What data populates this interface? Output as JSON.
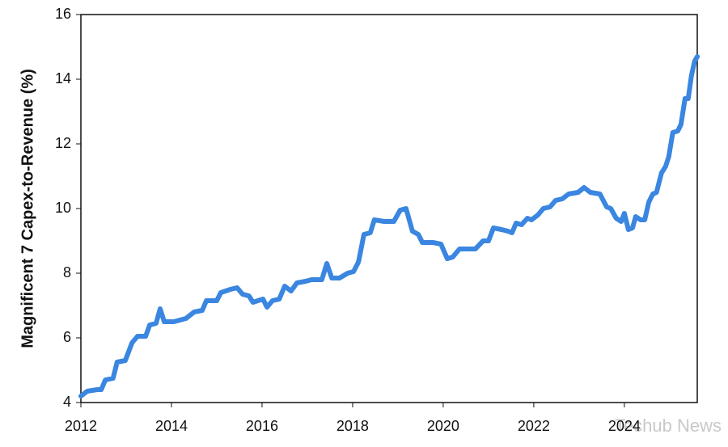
{
  "chart_data": {
    "type": "line",
    "y_label": "Magnificent 7 Capex-to-Revenue (%)",
    "watermark": "Techub News",
    "x": [
      2012.0,
      2012.14,
      2012.36,
      2012.45,
      2012.54,
      2012.71,
      2012.8,
      2012.98,
      2013.13,
      2013.25,
      2013.43,
      2013.52,
      2013.66,
      2013.75,
      2013.84,
      2014.05,
      2014.32,
      2014.5,
      2014.68,
      2014.77,
      2015.0,
      2015.09,
      2015.3,
      2015.45,
      2015.57,
      2015.71,
      2015.8,
      2016.02,
      2016.11,
      2016.23,
      2016.38,
      2016.5,
      2016.64,
      2016.77,
      2016.96,
      2017.09,
      2017.32,
      2017.43,
      2017.54,
      2017.71,
      2017.89,
      2018.02,
      2018.13,
      2018.25,
      2018.39,
      2018.48,
      2018.7,
      2018.91,
      2019.05,
      2019.18,
      2019.32,
      2019.45,
      2019.54,
      2019.77,
      2019.95,
      2020.09,
      2020.21,
      2020.36,
      2020.57,
      2020.71,
      2020.88,
      2021.0,
      2021.11,
      2021.29,
      2021.43,
      2021.52,
      2021.61,
      2021.73,
      2021.86,
      2021.95,
      2022.09,
      2022.21,
      2022.36,
      2022.48,
      2022.63,
      2022.77,
      2022.98,
      2023.11,
      2023.25,
      2023.46,
      2023.61,
      2023.7,
      2023.82,
      2023.93,
      2024.0,
      2024.09,
      2024.18,
      2024.25,
      2024.36,
      2024.45,
      2024.54,
      2024.63,
      2024.71,
      2024.82,
      2024.91,
      2024.98,
      2025.07,
      2025.18,
      2025.25,
      2025.34,
      2025.41,
      2025.48,
      2025.55,
      2025.61
    ],
    "series": [
      {
        "color": "#3a86e0",
        "values": [
          4.2,
          4.35,
          4.4,
          4.4,
          4.7,
          4.75,
          5.25,
          5.3,
          5.85,
          6.05,
          6.05,
          6.4,
          6.45,
          6.9,
          6.5,
          6.5,
          6.6,
          6.8,
          6.85,
          7.15,
          7.15,
          7.4,
          7.5,
          7.55,
          7.35,
          7.3,
          7.1,
          7.2,
          6.95,
          7.15,
          7.2,
          7.6,
          7.45,
          7.7,
          7.75,
          7.8,
          7.8,
          8.3,
          7.85,
          7.85,
          8.0,
          8.05,
          8.35,
          9.2,
          9.25,
          9.65,
          9.6,
          9.6,
          9.95,
          10.0,
          9.3,
          9.2,
          8.95,
          8.95,
          8.9,
          8.45,
          8.5,
          8.75,
          8.75,
          8.75,
          9.0,
          9.0,
          9.4,
          9.35,
          9.3,
          9.25,
          9.55,
          9.5,
          9.7,
          9.65,
          9.8,
          10.0,
          10.05,
          10.25,
          10.3,
          10.45,
          10.5,
          10.65,
          10.5,
          10.45,
          10.05,
          10.0,
          9.7,
          9.6,
          9.85,
          9.35,
          9.4,
          9.75,
          9.65,
          9.65,
          10.2,
          10.45,
          10.5,
          11.1,
          11.3,
          11.6,
          12.35,
          12.4,
          12.6,
          13.4,
          13.4,
          14.1,
          14.55,
          14.7
        ]
      }
    ],
    "xlim": [
      2012,
      2025.61
    ],
    "xticks": [
      2012,
      2014,
      2016,
      2018,
      2020,
      2022,
      2024
    ],
    "ylim": [
      4,
      16
    ],
    "yticks": [
      4,
      6,
      8,
      10,
      12,
      14,
      16
    ],
    "grid": false
  }
}
